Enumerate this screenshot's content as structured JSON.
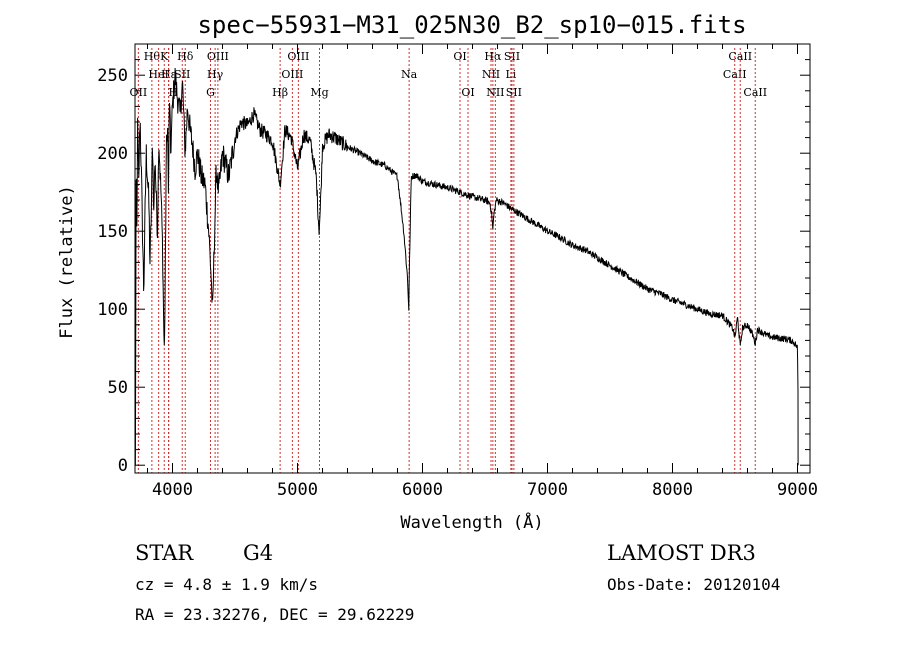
{
  "chart_data": {
    "type": "line",
    "title": "spec−55931−M31_025N30_B2_sp10−015.fits",
    "xlabel": "Wavelength (Å)",
    "ylabel": "Flux (relative)",
    "xlim": [
      3700,
      9100
    ],
    "ylim": [
      -5,
      270
    ],
    "xticks": [
      4000,
      5000,
      6000,
      7000,
      8000,
      9000
    ],
    "yticks": [
      0,
      50,
      100,
      150,
      200,
      250
    ],
    "spectrum_anchor_points": {
      "x": [
        3700,
        3705,
        3710,
        3715,
        3720,
        3730,
        3740,
        3750,
        3760,
        3770,
        3780,
        3790,
        3800,
        3810,
        3820,
        3830,
        3840,
        3850,
        3860,
        3870,
        3880,
        3890,
        3900,
        3910,
        3920,
        3930,
        3933,
        3940,
        3950,
        3960,
        3968,
        3975,
        3985,
        4000,
        4020,
        4040,
        4060,
        4080,
        4101,
        4120,
        4140,
        4160,
        4180,
        4200,
        4230,
        4260,
        4290,
        4310,
        4320,
        4330,
        4340,
        4350,
        4370,
        4400,
        4450,
        4500,
        4550,
        4600,
        4650,
        4700,
        4750,
        4800,
        4861,
        4900,
        4950,
        5000,
        5050,
        5100,
        5150,
        5172,
        5183,
        5200,
        5250,
        5300,
        5400,
        5500,
        5600,
        5700,
        5800,
        5850,
        5880,
        5890,
        5896,
        5910,
        5950,
        6000,
        6100,
        6200,
        6300,
        6400,
        6500,
        6540,
        6555,
        6563,
        6570,
        6590,
        6650,
        6700,
        6800,
        6900,
        7000,
        7100,
        7200,
        7300,
        7400,
        7500,
        7600,
        7700,
        7800,
        7900,
        8000,
        8100,
        8200,
        8300,
        8400,
        8480,
        8500,
        8520,
        8542,
        8560,
        8600,
        8640,
        8662,
        8680,
        8720,
        8760,
        8800,
        8900,
        8950,
        8980,
        9000,
        9005
      ],
      "y": [
        120,
        70,
        200,
        150,
        220,
        180,
        225,
        190,
        150,
        110,
        160,
        200,
        185,
        170,
        130,
        160,
        210,
        160,
        200,
        170,
        150,
        210,
        190,
        170,
        140,
        90,
        70,
        100,
        200,
        220,
        170,
        240,
        200,
        230,
        250,
        235,
        225,
        245,
        200,
        230,
        215,
        205,
        190,
        200,
        185,
        180,
        150,
        120,
        95,
        130,
        160,
        190,
        175,
        200,
        185,
        210,
        220,
        218,
        225,
        215,
        212,
        208,
        180,
        215,
        210,
        190,
        212,
        208,
        185,
        150,
        165,
        205,
        212,
        210,
        204,
        200,
        195,
        192,
        185,
        150,
        120,
        100,
        130,
        185,
        186,
        182,
        180,
        178,
        175,
        172,
        170,
        168,
        160,
        150,
        160,
        170,
        168,
        165,
        160,
        155,
        150,
        146,
        141,
        138,
        133,
        128,
        123,
        118,
        113,
        110,
        106,
        103,
        100,
        97,
        96,
        88,
        82,
        95,
        76,
        88,
        90,
        84,
        78,
        87,
        85,
        83,
        82,
        81,
        80,
        78,
        75,
        40
      ],
      "noise_amplitude": 8
    },
    "line_markers": [
      {
        "x": 3727,
        "label": "OII",
        "row": 2,
        "anchor": "middle"
      },
      {
        "x": 3835,
        "label": "Hθ",
        "row": 0,
        "anchor": "middle"
      },
      {
        "x": 3889,
        "label": "HeI",
        "row": 1,
        "anchor": "middle"
      },
      {
        "x": 3934,
        "label": "K",
        "row": 0,
        "anchor": "middle"
      },
      {
        "x": 3970,
        "label": "Hε",
        "row": 1,
        "anchor": "middle"
      },
      {
        "x": 3968,
        "label": "H",
        "row": 2,
        "anchor": "start"
      },
      {
        "x": 4102,
        "label": "Hδ",
        "row": 0,
        "anchor": "middle"
      },
      {
        "x": 4078,
        "label": "SII",
        "row": 1,
        "anchor": "middle"
      },
      {
        "x": 4304,
        "label": "G",
        "row": 2,
        "anchor": "middle"
      },
      {
        "x": 4341,
        "label": "Hγ",
        "row": 1,
        "anchor": "middle"
      },
      {
        "x": 4363,
        "label": "OIII",
        "row": 0,
        "anchor": "middle"
      },
      {
        "x": 4861,
        "label": "Hβ",
        "row": 2,
        "anchor": "middle"
      },
      {
        "x": 4959,
        "label": "OIII",
        "row": 1,
        "anchor": "middle"
      },
      {
        "x": 5007,
        "label": "OIII",
        "row": 0,
        "anchor": "middle"
      },
      {
        "x": 5176,
        "label": "Mg",
        "row": 2,
        "anchor": "middle"
      },
      {
        "x": 5893,
        "label": "Na",
        "row": 1,
        "anchor": "middle"
      },
      {
        "x": 6300,
        "label": "OI",
        "row": 0,
        "anchor": "middle"
      },
      {
        "x": 6364,
        "label": "OI",
        "row": 2,
        "anchor": "middle"
      },
      {
        "x": 6548,
        "label": "NII",
        "row": 1,
        "anchor": "middle"
      },
      {
        "x": 6563,
        "label": "Hα",
        "row": 0,
        "anchor": "middle"
      },
      {
        "x": 6583,
        "label": "NII",
        "row": 2,
        "anchor": "middle"
      },
      {
        "x": 6707,
        "label": "Li",
        "row": 1,
        "anchor": "middle"
      },
      {
        "x": 6716,
        "label": "SII",
        "row": 0,
        "anchor": "middle"
      },
      {
        "x": 6731,
        "label": "SII",
        "row": 2,
        "anchor": "middle"
      },
      {
        "x": 8498,
        "label": "CaII",
        "row": 1,
        "anchor": "middle"
      },
      {
        "x": 8542,
        "label": "CaII",
        "row": 0,
        "anchor": "middle"
      },
      {
        "x": 8662,
        "label": "CaII",
        "row": 2,
        "anchor": "middle"
      }
    ]
  },
  "info": {
    "object_class": "STAR",
    "subclass": "G4",
    "cz": "cz = 4.8 ± 1.9 km/s",
    "radec": "RA =  23.32276, DEC =  29.62229",
    "survey": "LAMOST DR3",
    "obs_date": "Obs-Date: 20120104"
  },
  "colors": {
    "spectrum": "#000000",
    "marker_line": "#d23030",
    "axis": "#000000"
  }
}
